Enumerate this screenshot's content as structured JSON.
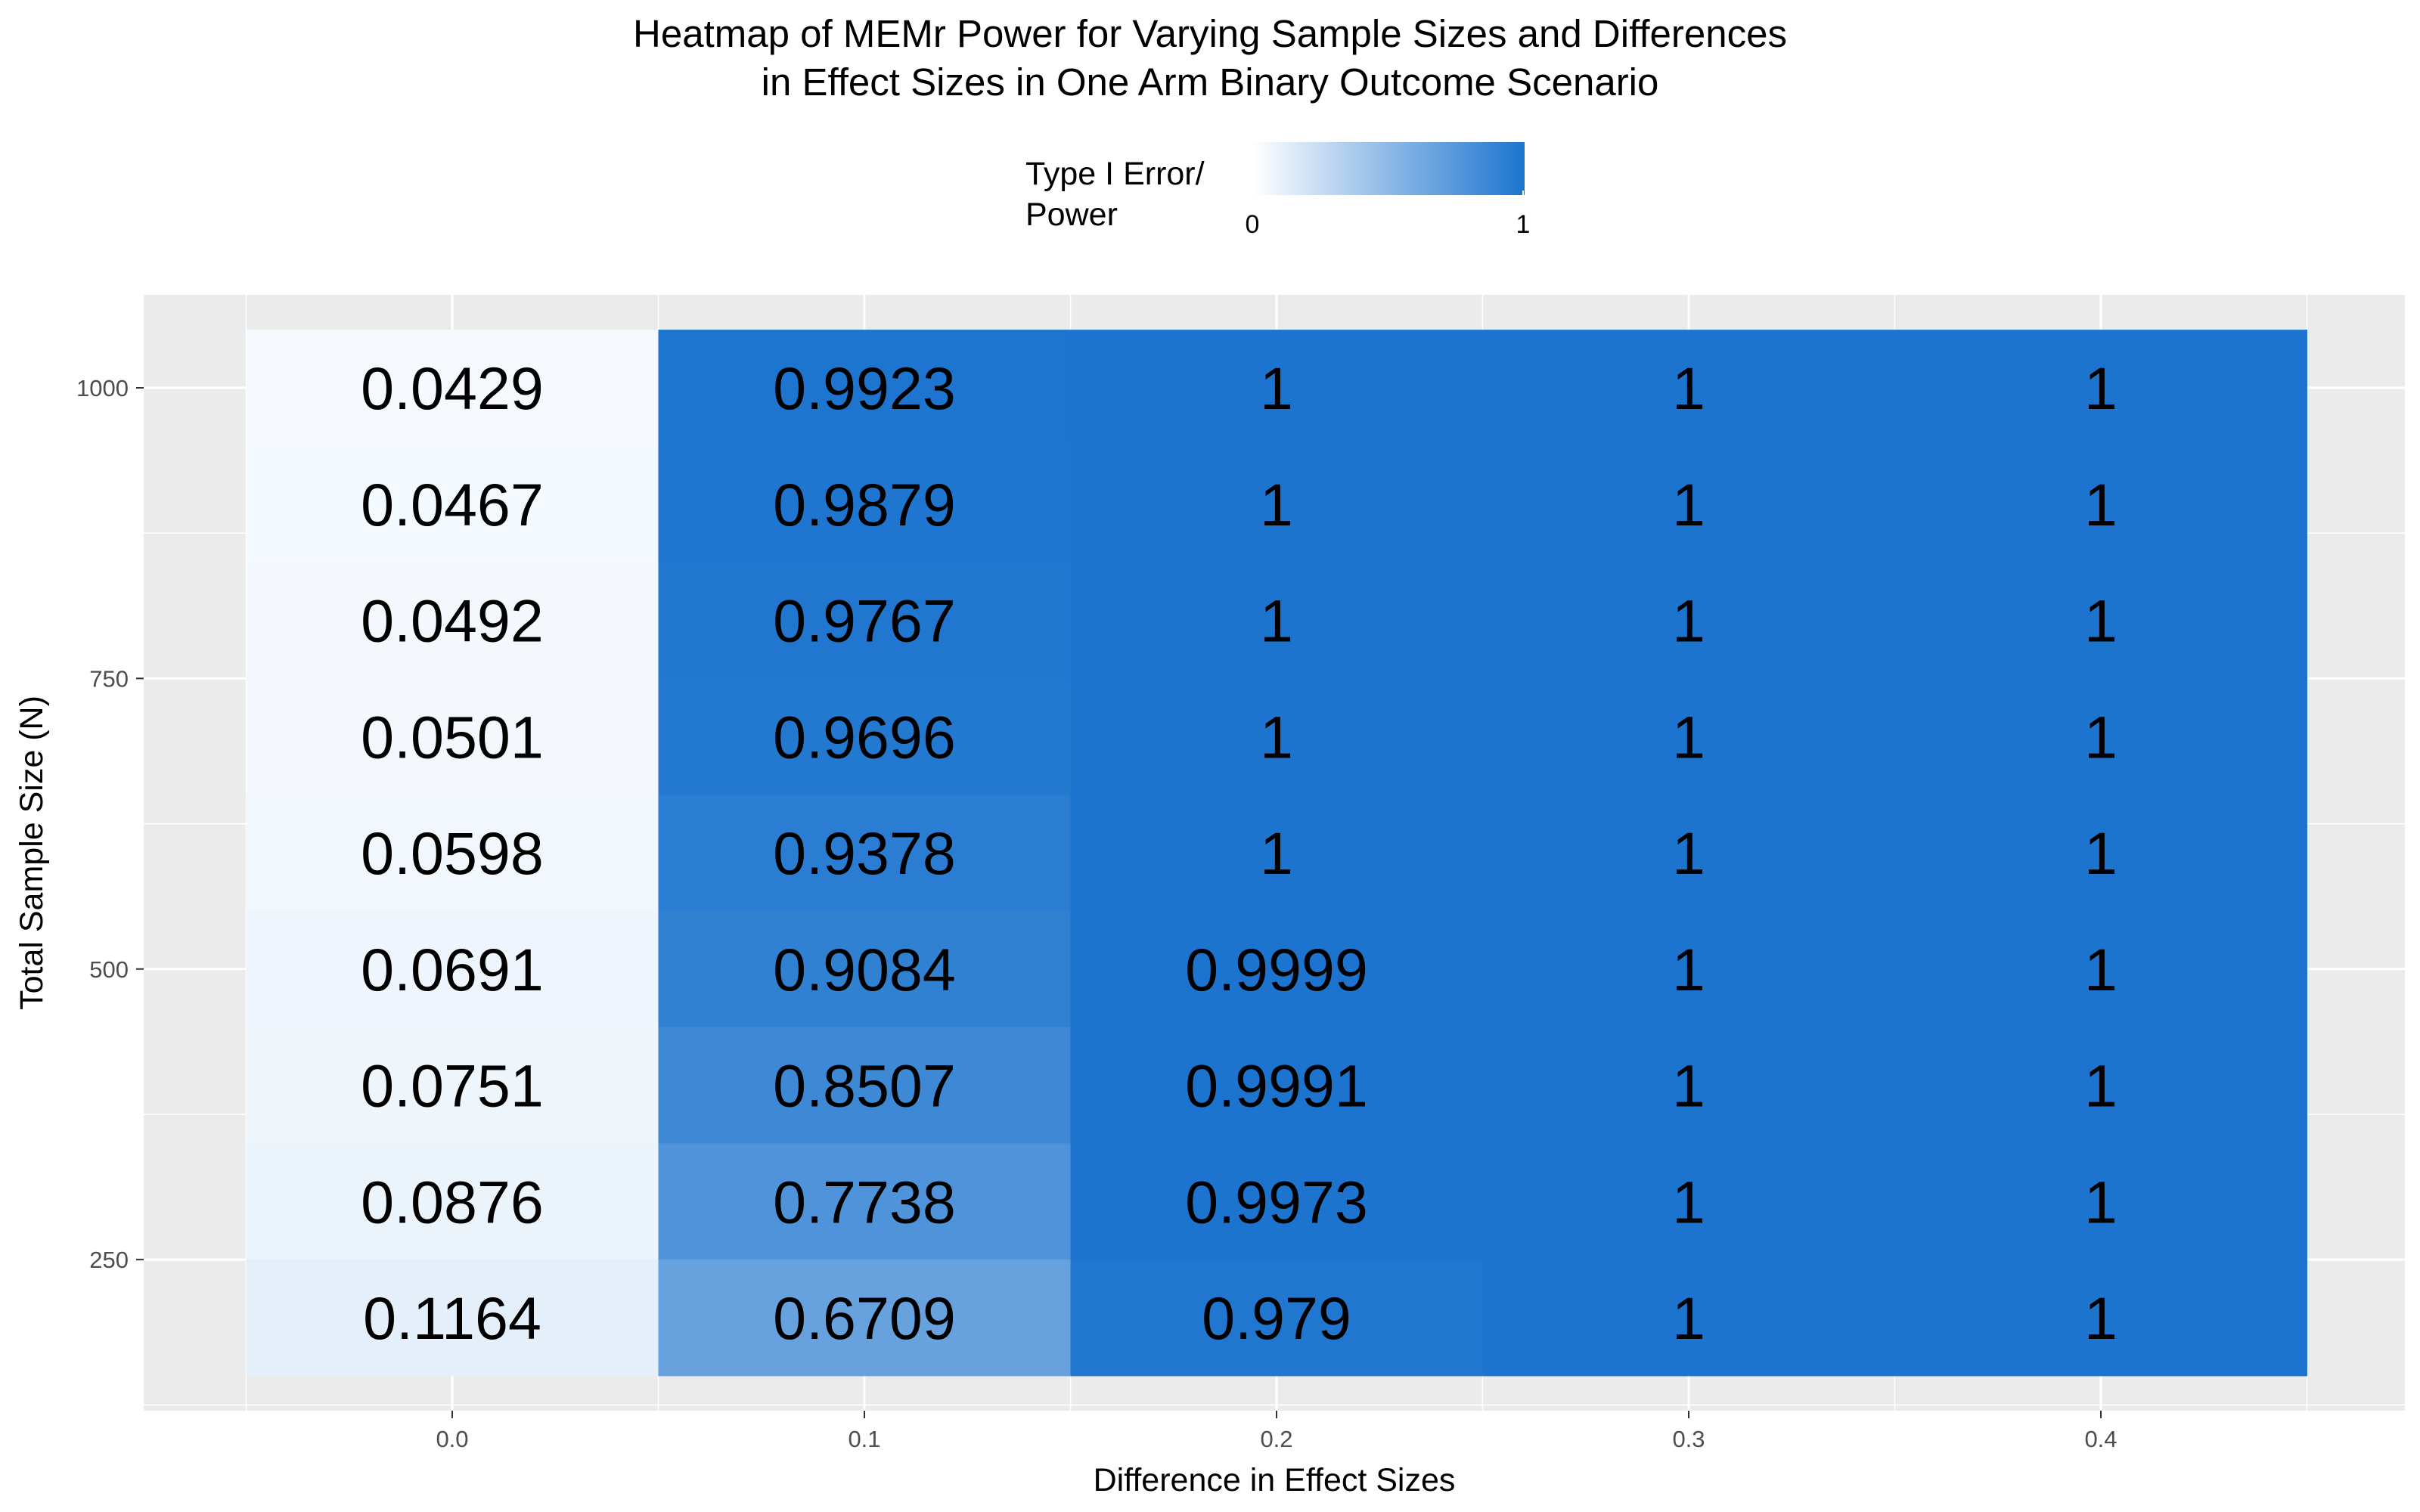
{
  "chart_data": {
    "type": "heatmap",
    "title_lines": [
      "Heatmap of MEMr Power for Varying Sample Sizes and Differences",
      "in Effect Sizes in One Arm Binary Outcome Scenario"
    ],
    "xlabel": "Difference in Effect Sizes",
    "ylabel": "Total Sample Size (N)",
    "x_ticks": [
      "0.0",
      "0.1",
      "0.2",
      "0.3",
      "0.4"
    ],
    "y_ticks": [
      "250",
      "500",
      "750",
      "1000"
    ],
    "y_tick_values": [
      250,
      500,
      750,
      1000
    ],
    "ylim": [
      120,
      1080
    ],
    "legend": {
      "title_lines": [
        "Type I Error/",
        "Power"
      ],
      "min_label": "0",
      "max_label": "1",
      "low_color": "#ffffff",
      "high_color": "#1c74cf",
      "position": "top"
    },
    "grid": true,
    "panel_background": "#ebebeb",
    "x": [
      0.0,
      0.1,
      0.2,
      0.3,
      0.4
    ],
    "y": [
      200,
      300,
      400,
      500,
      600,
      700,
      800,
      900,
      1000
    ],
    "values": [
      {
        "x": 0.0,
        "cells": [
          {
            "n": 1000,
            "value": 0.0429,
            "label": "0.0429"
          },
          {
            "n": 900,
            "value": 0.0467,
            "label": "0.0467"
          },
          {
            "n": 800,
            "value": 0.0492,
            "label": "0.0492"
          },
          {
            "n": 700,
            "value": 0.0501,
            "label": "0.0501"
          },
          {
            "n": 600,
            "value": 0.0598,
            "label": "0.0598"
          },
          {
            "n": 500,
            "value": 0.0691,
            "label": "0.0691"
          },
          {
            "n": 400,
            "value": 0.0751,
            "label": "0.0751"
          },
          {
            "n": 300,
            "value": 0.0876,
            "label": "0.0876"
          },
          {
            "n": 200,
            "value": 0.1164,
            "label": "0.1164"
          }
        ]
      },
      {
        "x": 0.1,
        "cells": [
          {
            "n": 1000,
            "value": 0.9923,
            "label": "0.9923"
          },
          {
            "n": 900,
            "value": 0.9879,
            "label": "0.9879"
          },
          {
            "n": 800,
            "value": 0.9767,
            "label": "0.9767"
          },
          {
            "n": 700,
            "value": 0.9696,
            "label": "0.9696"
          },
          {
            "n": 600,
            "value": 0.9378,
            "label": "0.9378"
          },
          {
            "n": 500,
            "value": 0.9084,
            "label": "0.9084"
          },
          {
            "n": 400,
            "value": 0.8507,
            "label": "0.8507"
          },
          {
            "n": 300,
            "value": 0.7738,
            "label": "0.7738"
          },
          {
            "n": 200,
            "value": 0.6709,
            "label": "0.6709"
          }
        ]
      },
      {
        "x": 0.2,
        "cells": [
          {
            "n": 1000,
            "value": 1,
            "label": "1"
          },
          {
            "n": 900,
            "value": 1,
            "label": "1"
          },
          {
            "n": 800,
            "value": 1,
            "label": "1"
          },
          {
            "n": 700,
            "value": 1,
            "label": "1"
          },
          {
            "n": 600,
            "value": 1,
            "label": "1"
          },
          {
            "n": 500,
            "value": 0.9999,
            "label": "0.9999"
          },
          {
            "n": 400,
            "value": 0.9991,
            "label": "0.9991"
          },
          {
            "n": 300,
            "value": 0.9973,
            "label": "0.9973"
          },
          {
            "n": 200,
            "value": 0.979,
            "label": "0.979"
          }
        ]
      },
      {
        "x": 0.3,
        "cells": [
          {
            "n": 1000,
            "value": 1,
            "label": "1"
          },
          {
            "n": 900,
            "value": 1,
            "label": "1"
          },
          {
            "n": 800,
            "value": 1,
            "label": "1"
          },
          {
            "n": 700,
            "value": 1,
            "label": "1"
          },
          {
            "n": 600,
            "value": 1,
            "label": "1"
          },
          {
            "n": 500,
            "value": 1,
            "label": "1"
          },
          {
            "n": 400,
            "value": 1,
            "label": "1"
          },
          {
            "n": 300,
            "value": 1,
            "label": "1"
          },
          {
            "n": 200,
            "value": 1,
            "label": "1"
          }
        ]
      },
      {
        "x": 0.4,
        "cells": [
          {
            "n": 1000,
            "value": 1,
            "label": "1"
          },
          {
            "n": 900,
            "value": 1,
            "label": "1"
          },
          {
            "n": 800,
            "value": 1,
            "label": "1"
          },
          {
            "n": 700,
            "value": 1,
            "label": "1"
          },
          {
            "n": 600,
            "value": 1,
            "label": "1"
          },
          {
            "n": 500,
            "value": 1,
            "label": "1"
          },
          {
            "n": 400,
            "value": 1,
            "label": "1"
          },
          {
            "n": 300,
            "value": 1,
            "label": "1"
          },
          {
            "n": 200,
            "value": 1,
            "label": "1"
          }
        ]
      }
    ]
  }
}
